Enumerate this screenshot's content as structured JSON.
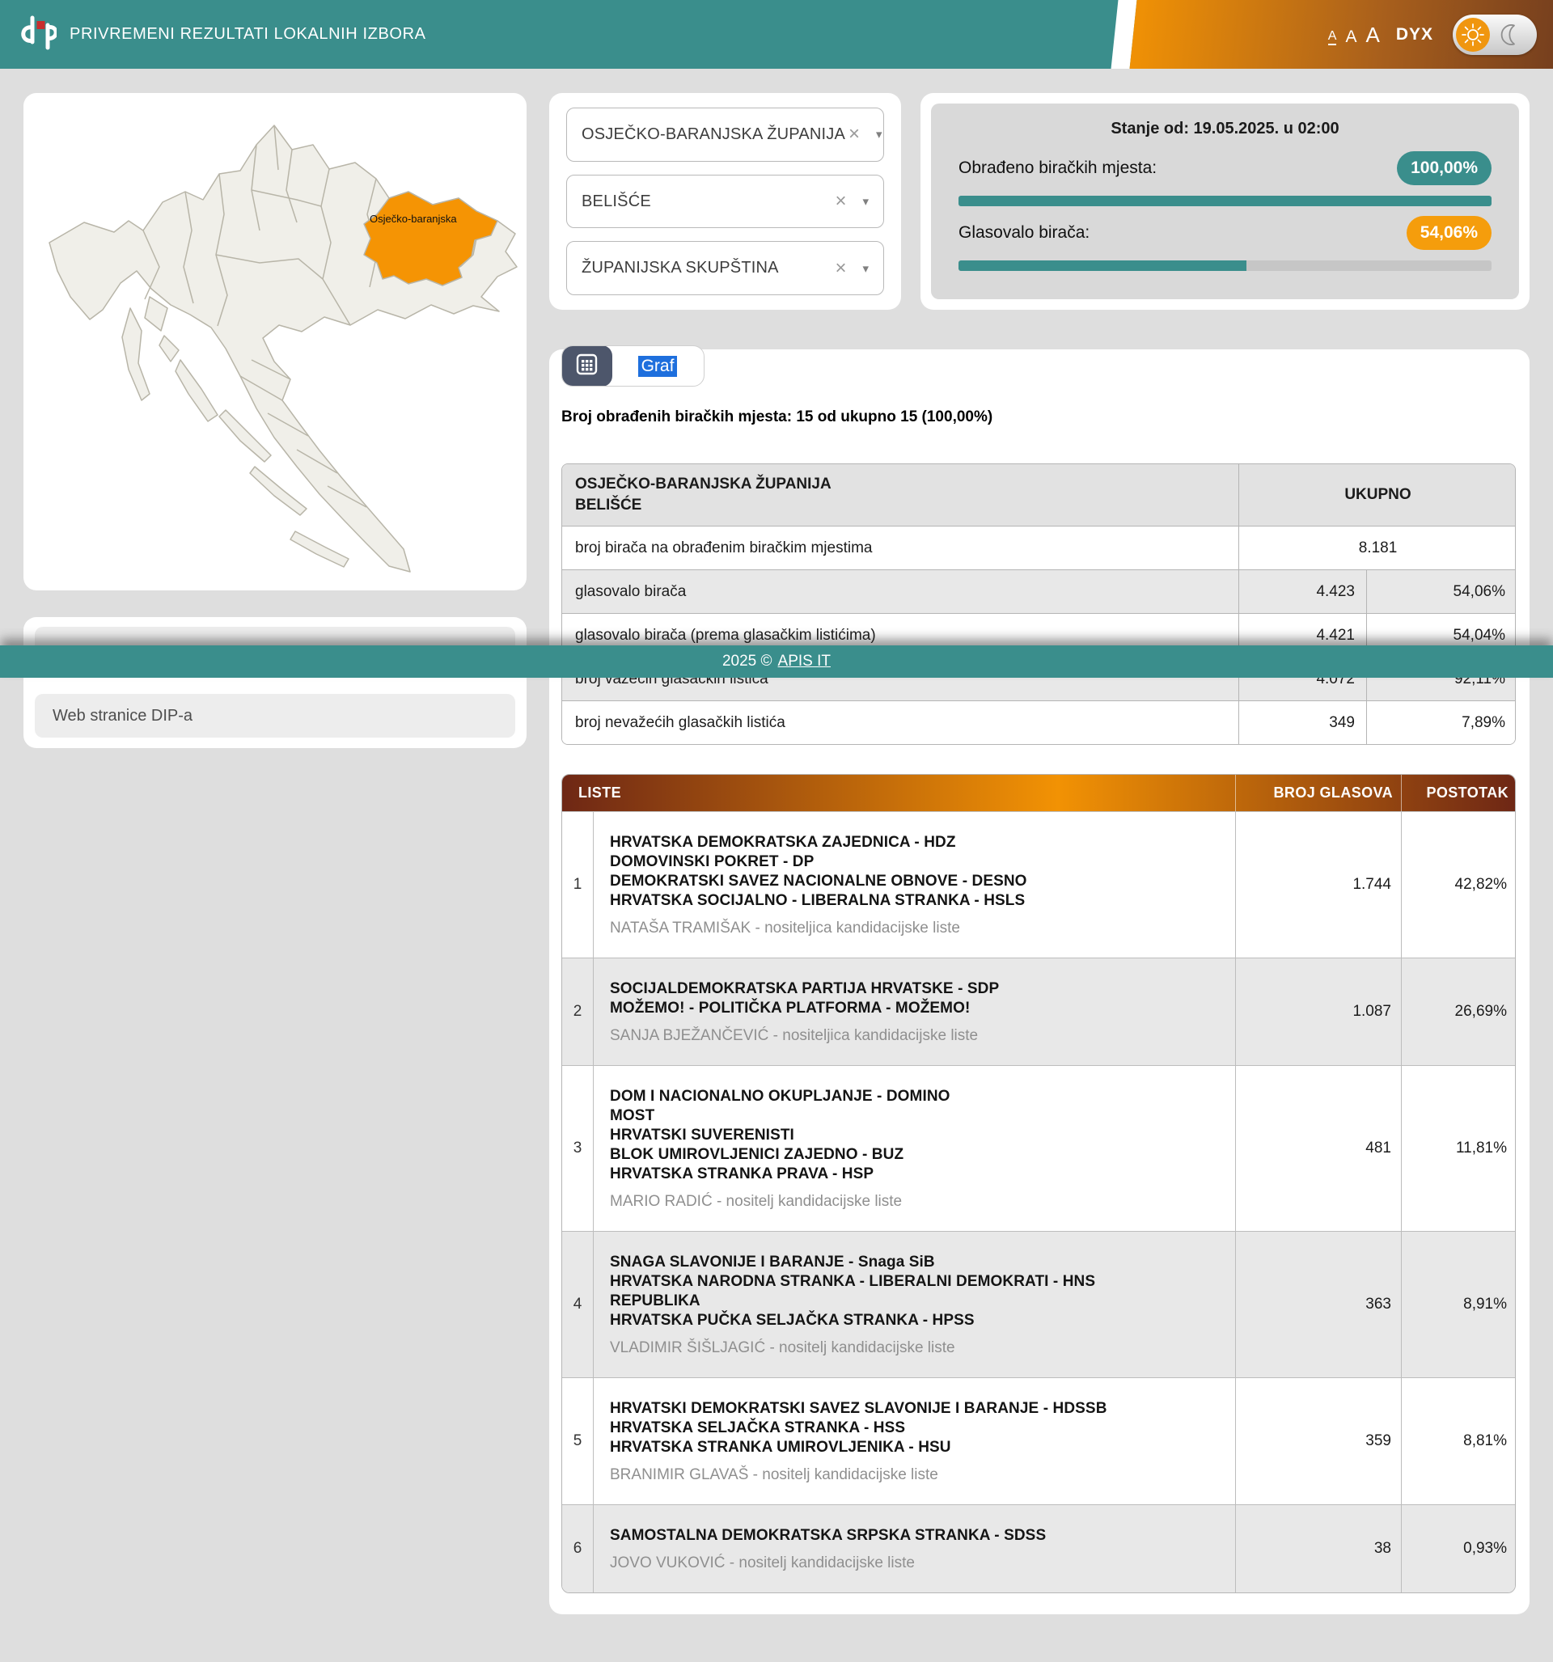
{
  "colors": {
    "teal": "#3A8E8C",
    "accent_orange": "#F59D0C",
    "map_orange": "#F59404",
    "results_header_dark": "#6E2715",
    "results_header_orange": "#F29204"
  },
  "header": {
    "title": "PRIVREMENI REZULTATI LOKALNIH IZBORA",
    "font_size_label": "A",
    "dyx_label": "DYX"
  },
  "map": {
    "selected_county_label": "Osječko-baranjska"
  },
  "filters": [
    {
      "value": "OSJEČKO-BARANJSKA ŽUPANIJA"
    },
    {
      "value": "BELIŠĆE"
    },
    {
      "value": "ŽUPANIJSKA SKUPŠTINA"
    }
  ],
  "ui": {
    "clear_icon": "×",
    "caret_icon": "▾"
  },
  "status": {
    "title": "Stanje od: 19.05.2025. u 02:00",
    "processed_label": "Obrađeno biračkih mjesta:",
    "processed_value": "100,00%",
    "processed_pct": 100,
    "turnout_label": "Glasovalo birača:",
    "turnout_value": "54,06%",
    "turnout_pct": 54.06
  },
  "tabs": {
    "graf_label": "Graf"
  },
  "main": {
    "caption": "Broj obrađenih biračkih mjesta: 15 od ukupno 15 (100,00%)"
  },
  "summary_table": {
    "header_left_line1": "OSJEČKO-BARANJSKA ŽUPANIJA",
    "header_left_line2": "BELIŠĆE",
    "header_right": "UKUPNO",
    "rows": [
      {
        "label": "broj birača na obrađenim biračkim mjestima",
        "value": "8.181",
        "pct": ""
      },
      {
        "label": "glasovalo birača",
        "value": "4.423",
        "pct": "54,06%"
      },
      {
        "label": "glasovalo birača (prema glasačkim listićima)",
        "value": "4.421",
        "pct": "54,04%"
      },
      {
        "label": "broj važećih glasačkih listića",
        "value": "4.072",
        "pct": "92,11%"
      },
      {
        "label": "broj nevažećih glasačkih listića",
        "value": "349",
        "pct": "7,89%"
      }
    ]
  },
  "results_table": {
    "headers": {
      "liste": "LISTE",
      "votes": "BROJ GLASOVA",
      "pct": "POSTOTAK"
    },
    "rows": [
      {
        "num": "1",
        "parties": [
          "HRVATSKA DEMOKRATSKA ZAJEDNICA - HDZ",
          "DOMOVINSKI POKRET - DP",
          "DEMOKRATSKI SAVEZ NACIONALNE OBNOVE - DESNO",
          "HRVATSKA SOCIJALNO - LIBERALNA STRANKA - HSLS"
        ],
        "holder": "NATAŠA TRAMIŠAK - nositeljica kandidacijske liste",
        "votes": "1.744",
        "pct": "42,82%"
      },
      {
        "num": "2",
        "parties": [
          "SOCIJALDEMOKRATSKA PARTIJA HRVATSKE - SDP",
          "MOŽEMO! - POLITIČKA PLATFORMA - MOŽEMO!"
        ],
        "holder": "SANJA BJEŽANČEVIĆ - nositeljica kandidacijske liste",
        "votes": "1.087",
        "pct": "26,69%"
      },
      {
        "num": "3",
        "parties": [
          "DOM I NACIONALNO OKUPLJANJE - DOMINO",
          "MOST",
          "HRVATSKI SUVERENISTI",
          "BLOK UMIROVLJENICI ZAJEDNO - BUZ",
          "HRVATSKA STRANKA PRAVA - HSP"
        ],
        "holder": "MARIO RADIĆ - nositelj kandidacijske liste",
        "votes": "481",
        "pct": "11,81%"
      },
      {
        "num": "4",
        "parties": [
          "SNAGA SLAVONIJE I BARANJE - Snaga SiB",
          "HRVATSKA NARODNA STRANKA - LIBERALNI DEMOKRATI - HNS",
          "REPUBLIKA",
          "HRVATSKA PUČKA SELJAČKA STRANKA - HPSS"
        ],
        "holder": "VLADIMIR ŠIŠLJAGIĆ - nositelj kandidacijske liste",
        "votes": "363",
        "pct": "8,91%"
      },
      {
        "num": "5",
        "parties": [
          "HRVATSKI DEMOKRATSKI SAVEZ SLAVONIJE I BARANJE - HDSSB",
          "HRVATSKA SELJAČKA STRANKA - HSS",
          "HRVATSKA STRANKA UMIROVLJENIKA - HSU"
        ],
        "holder": "BRANIMIR GLAVAŠ - nositelj kandidacijske liste",
        "votes": "359",
        "pct": "8,81%"
      },
      {
        "num": "6",
        "parties": [
          "SAMOSTALNA DEMOKRATSKA SRPSKA STRANKA - SDSS"
        ],
        "holder": "JOVO VUKOVIĆ - nositelj kandidacijske liste",
        "votes": "38",
        "pct": "0,93%"
      }
    ]
  },
  "sidebar": {
    "web_link_label": "Web stranice DIP-a"
  },
  "footer": {
    "prefix": "2025 ©",
    "link_label": "APIS IT"
  }
}
